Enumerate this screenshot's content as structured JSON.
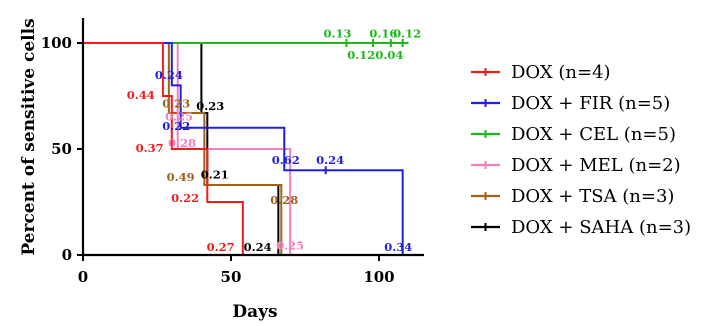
{
  "chart_data": {
    "type": "line",
    "step": true,
    "xlabel": "Days",
    "ylabel": "Percent of sensitive cells",
    "xlim": [
      0,
      112
    ],
    "ylim": [
      0,
      110
    ],
    "xticks": [
      0,
      50,
      100
    ],
    "yticks": [
      0,
      50,
      100
    ],
    "legend_position": "right",
    "series": [
      {
        "name": "DOX (n=4)",
        "color": "#ee1c1c",
        "x": [
          0,
          27,
          30,
          42,
          54
        ],
        "y": [
          100,
          75,
          50,
          25,
          0
        ],
        "censored_x": [],
        "censored_y": []
      },
      {
        "name": "DOX + FIR (n=5)",
        "color": "#1f1fe0",
        "x": [
          0,
          30,
          33,
          68,
          108
        ],
        "y": [
          100,
          80,
          60,
          40,
          0
        ],
        "censored_x": [
          82
        ],
        "censored_y": [
          40
        ]
      },
      {
        "name": "DOX + CEL (n=5)",
        "color": "#1db71d",
        "x": [
          0,
          110
        ],
        "y": [
          100,
          100
        ],
        "censored_x": [
          89,
          98,
          104,
          108
        ],
        "censored_y": [
          100,
          100,
          100,
          100
        ]
      },
      {
        "name": "DOX + MEL (n=2)",
        "color": "#f27fc1",
        "x": [
          0,
          32,
          70
        ],
        "y": [
          100,
          50,
          0
        ],
        "censored_x": [],
        "censored_y": []
      },
      {
        "name": "DOX + TSA (n=3)",
        "color": "#a0611a",
        "x": [
          0,
          29,
          41,
          67
        ],
        "y": [
          100,
          67,
          33,
          0
        ],
        "censored_x": [],
        "censored_y": []
      },
      {
        "name": "DOX + SAHA (n=3)",
        "color": "#000000",
        "x": [
          0,
          40,
          42,
          66
        ],
        "y": [
          100,
          67,
          33,
          0
        ],
        "censored_x": [],
        "censored_y": []
      }
    ],
    "annotations": [
      {
        "text": "0.44",
        "color": "#ee1c1c",
        "x": 19.5,
        "y": 73.5
      },
      {
        "text": "0.37",
        "color": "#ee1c1c",
        "x": 22.5,
        "y": 48.5
      },
      {
        "text": "0.22",
        "color": "#ee1c1c",
        "x": 34.5,
        "y": 25
      },
      {
        "text": "0.27",
        "color": "#ee1c1c",
        "x": 46.5,
        "y": 2
      },
      {
        "text": "0.24",
        "color": "#1f1fe0",
        "x": 29,
        "y": 83
      },
      {
        "text": "0.22",
        "color": "#1f1fe0",
        "x": 31.5,
        "y": 59
      },
      {
        "text": "0.62",
        "color": "#1f1fe0",
        "x": 68.5,
        "y": 43
      },
      {
        "text": "0.24",
        "color": "#1f1fe0",
        "x": 83.5,
        "y": 43
      },
      {
        "text": "0.34",
        "color": "#1f1fe0",
        "x": 106.5,
        "y": 2
      },
      {
        "text": "0.13",
        "color": "#1db71d",
        "x": 86,
        "y": 102.5
      },
      {
        "text": "0.16",
        "color": "#1db71d",
        "x": 101.5,
        "y": 102.5
      },
      {
        "text": "0.12",
        "color": "#1db71d",
        "x": 109.5,
        "y": 102.5
      },
      {
        "text": "0.12",
        "color": "#1db71d",
        "x": 94,
        "y": 92.5
      },
      {
        "text": "0.04",
        "color": "#1db71d",
        "x": 103.5,
        "y": 92.5
      },
      {
        "text": "0.25",
        "color": "#f27fc1",
        "x": 32.5,
        "y": 63.5
      },
      {
        "text": "0.28",
        "color": "#f27fc1",
        "x": 33.5,
        "y": 51
      },
      {
        "text": "0.25",
        "color": "#f27fc1",
        "x": 70,
        "y": 2.5
      },
      {
        "text": "0.23",
        "color": "#a0611a",
        "x": 31.5,
        "y": 69.5
      },
      {
        "text": "0.49",
        "color": "#a0611a",
        "x": 33,
        "y": 35
      },
      {
        "text": "0.28",
        "color": "#a0611a",
        "x": 68,
        "y": 24
      },
      {
        "text": "0.23",
        "color": "#000000",
        "x": 43,
        "y": 68.5
      },
      {
        "text": "0.21",
        "color": "#000000",
        "x": 44.5,
        "y": 36
      },
      {
        "text": "0.24",
        "color": "#000000",
        "x": 59,
        "y": 2
      }
    ]
  }
}
